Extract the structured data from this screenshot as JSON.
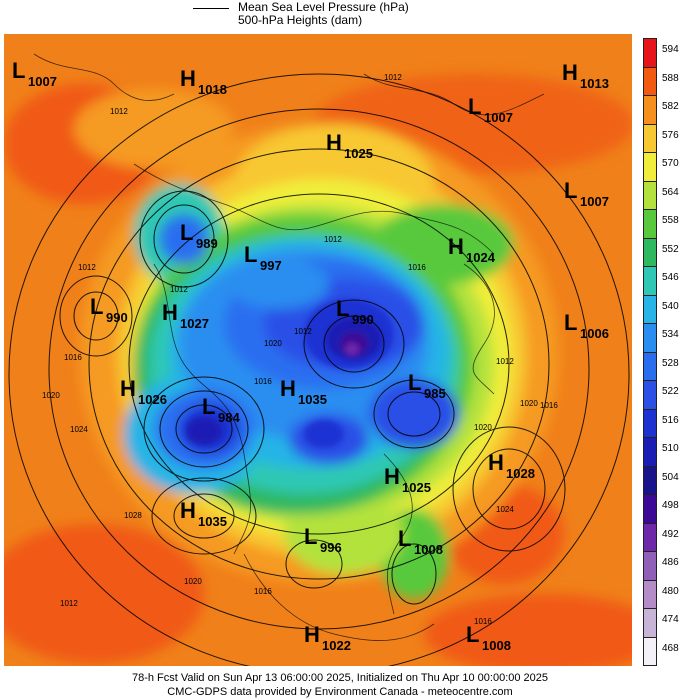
{
  "legend": {
    "line1": "Mean Sea Level Pressure (hPa)",
    "line2": "500-hPa Heights (dam)"
  },
  "footer": {
    "line1": "78-h Fcst Valid on Sun Apr 13 06:00:00 2025, Initialized on Thu Apr 10 00:00:00 2025",
    "line2": "CMC-GDPS data provided by Environment Canada - meteocentre.com"
  },
  "colorbar": [
    {
      "label": "594",
      "color": "#e8141c"
    },
    {
      "label": "588",
      "color": "#f25a12"
    },
    {
      "label": "582",
      "color": "#f5901e"
    },
    {
      "label": "576",
      "color": "#f8c832"
    },
    {
      "label": "570",
      "color": "#f0ee3a"
    },
    {
      "label": "564",
      "color": "#b4e23c"
    },
    {
      "label": "558",
      "color": "#58c93c"
    },
    {
      "label": "552",
      "color": "#2eb860"
    },
    {
      "label": "546",
      "color": "#2ec8b4"
    },
    {
      "label": "540",
      "color": "#28b4e6"
    },
    {
      "label": "534",
      "color": "#2a8ef0"
    },
    {
      "label": "528",
      "color": "#2a6ef0"
    },
    {
      "label": "522",
      "color": "#2a50e6"
    },
    {
      "label": "516",
      "color": "#1e32d2"
    },
    {
      "label": "510",
      "color": "#1a1eb4"
    },
    {
      "label": "504",
      "color": "#1a148c"
    },
    {
      "label": "498",
      "color": "#3c0a96"
    },
    {
      "label": "492",
      "color": "#6e28aa"
    },
    {
      "label": "486",
      "color": "#9060b8"
    },
    {
      "label": "480",
      "color": "#b48cc8"
    },
    {
      "label": "474",
      "color": "#c8b4d6"
    },
    {
      "label": "468",
      "color": "#f4f0f8"
    }
  ],
  "pressure_centers": [
    {
      "type": "L",
      "value": "1007"
    },
    {
      "type": "H",
      "value": "1018"
    },
    {
      "type": "H",
      "value": "1013"
    },
    {
      "type": "L",
      "value": "1007"
    },
    {
      "type": "H",
      "value": "1025"
    },
    {
      "type": "L",
      "value": "1007"
    },
    {
      "type": "L",
      "value": "989"
    },
    {
      "type": "H",
      "value": "1024"
    },
    {
      "type": "L",
      "value": "997"
    },
    {
      "type": "L",
      "value": "990"
    },
    {
      "type": "H",
      "value": "1027"
    },
    {
      "type": "L",
      "value": "990"
    },
    {
      "type": "L",
      "value": "1006"
    },
    {
      "type": "H",
      "value": "1026"
    },
    {
      "type": "L",
      "value": "984"
    },
    {
      "type": "H",
      "value": "1035"
    },
    {
      "type": "L",
      "value": "985"
    },
    {
      "type": "H",
      "value": "1028"
    },
    {
      "type": "H",
      "value": "1025"
    },
    {
      "type": "H",
      "value": "1035"
    },
    {
      "type": "L",
      "value": "996"
    },
    {
      "type": "L",
      "value": "1008"
    },
    {
      "type": "H",
      "value": "1022"
    },
    {
      "type": "L",
      "value": "1008"
    }
  ],
  "isobar_labels": [
    "1012",
    "1012",
    "1012",
    "1012",
    "1016",
    "1020",
    "1024",
    "1028",
    "1020",
    "1016",
    "1012",
    "1020",
    "1016",
    "1012",
    "1016",
    "1012",
    "1020",
    "1024",
    "1020",
    "1012",
    "1016",
    "1016"
  ]
}
